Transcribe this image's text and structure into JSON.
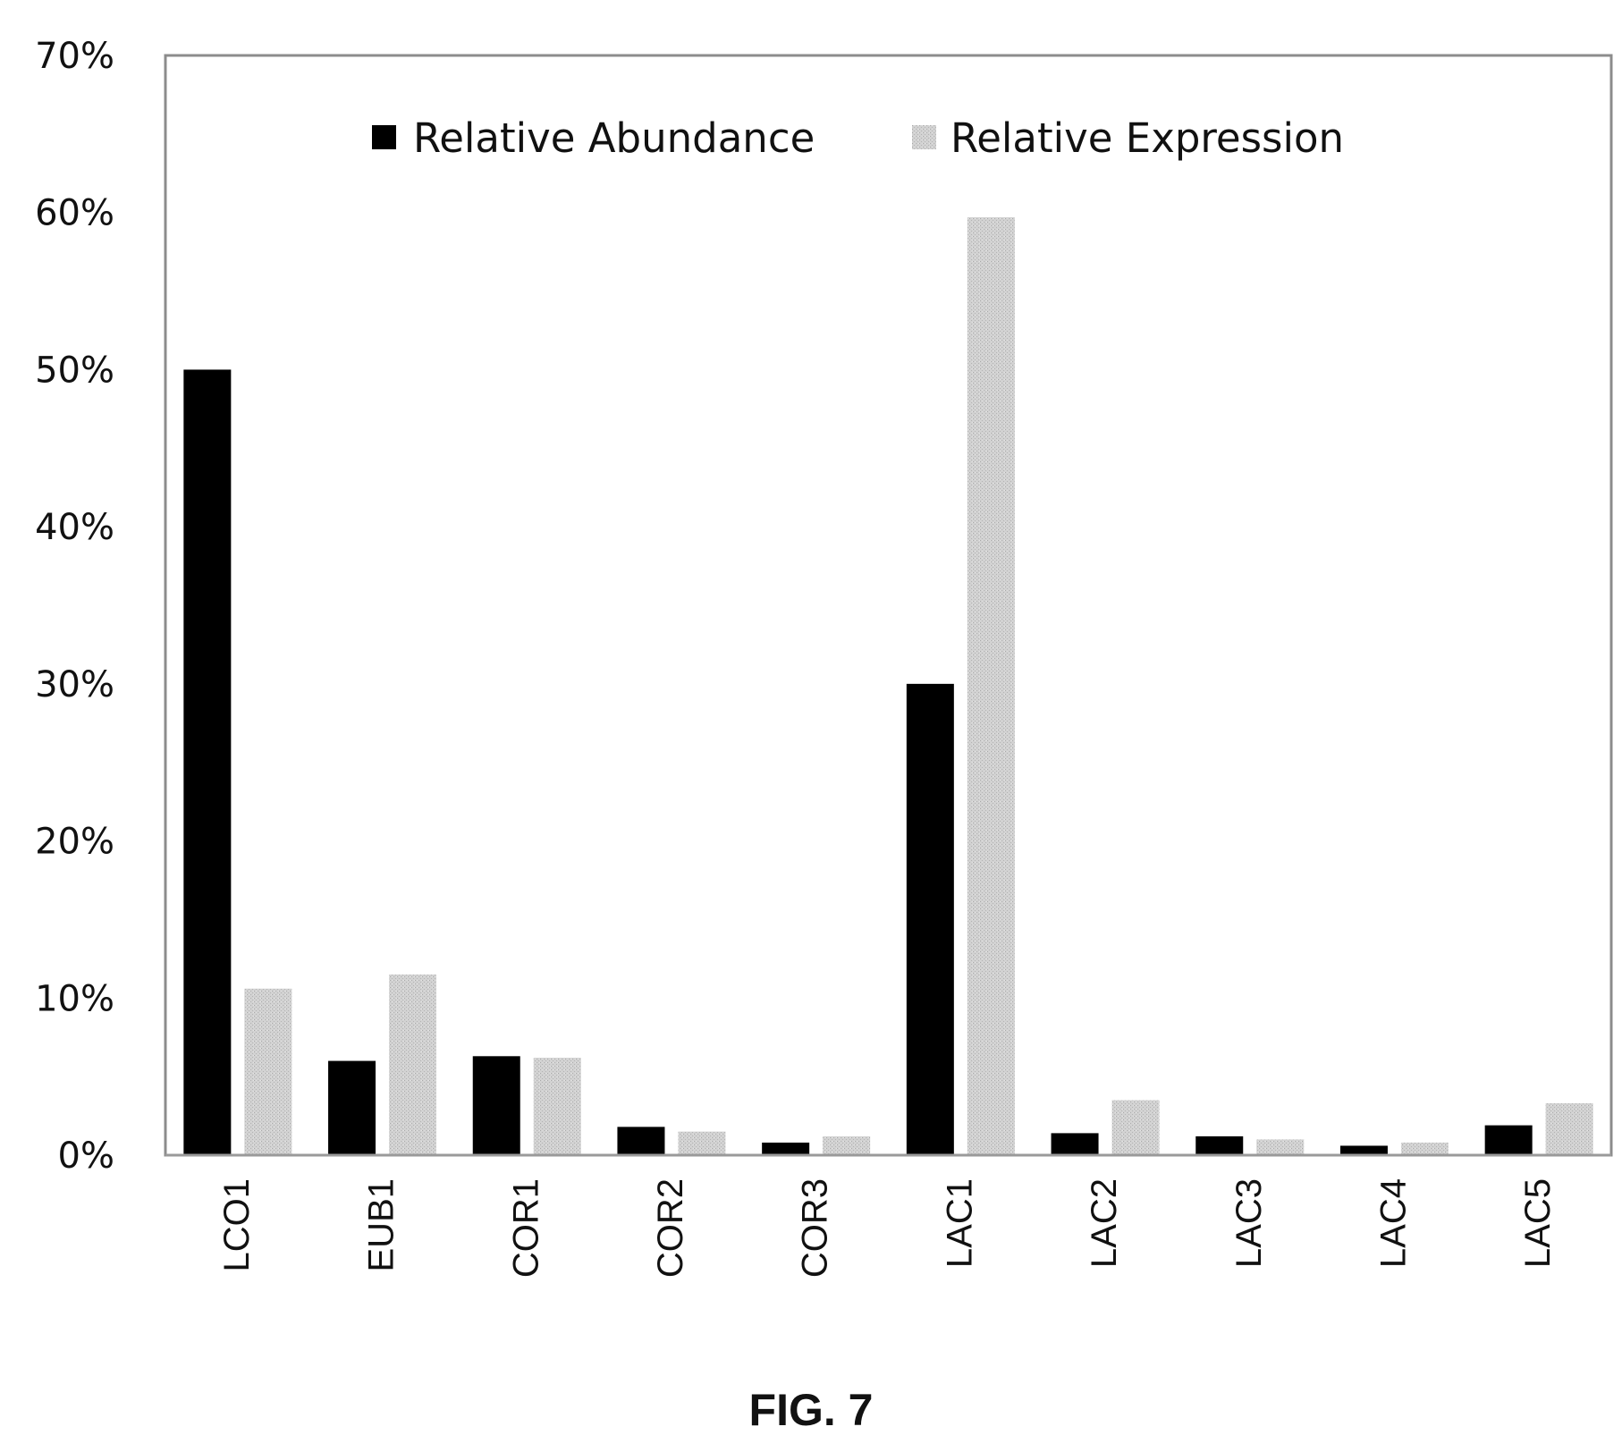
{
  "figure": {
    "caption": "FIG. 7"
  },
  "chart_data": {
    "type": "bar",
    "title": "",
    "xlabel": "",
    "ylabel": "",
    "categories": [
      "LCO1",
      "EUB1",
      "COR1",
      "COR2",
      "COR3",
      "LAC1",
      "LAC2",
      "LAC3",
      "LAC4",
      "LAC5"
    ],
    "series": [
      {
        "name": "Relative Abundance",
        "color": "#000000",
        "values": [
          50,
          6,
          6.3,
          1.8,
          0.8,
          30,
          1.4,
          1.2,
          0.6,
          1.9
        ]
      },
      {
        "name": "Relative Expression",
        "color": "#c8c8c8",
        "values": [
          10.6,
          11.5,
          6.2,
          1.5,
          1.2,
          59.7,
          3.5,
          1.0,
          0.8,
          3.3
        ]
      }
    ],
    "ylim": [
      0,
      70
    ],
    "yticks": [
      "0%",
      "10%",
      "20%",
      "30%",
      "40%",
      "50%",
      "60%",
      "70%"
    ],
    "ytick_values": [
      0,
      10,
      20,
      30,
      40,
      50,
      60,
      70
    ],
    "legend_position": "top-center",
    "grid": false
  }
}
